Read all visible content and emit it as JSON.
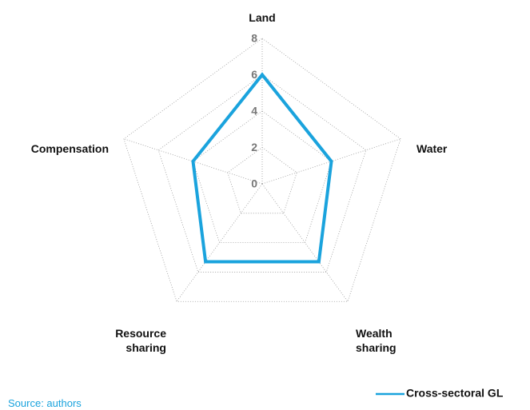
{
  "chart_data": {
    "type": "radar",
    "categories": [
      "Land",
      "Water",
      "Wealth sharing",
      "Resource sharing",
      "Compensation"
    ],
    "series": [
      {
        "name": "Cross-sectoral GL",
        "color": "#1aa3dd",
        "values": [
          6,
          4,
          5.3,
          5.3,
          4
        ]
      }
    ],
    "ylim": [
      0,
      8
    ],
    "yticks": [
      0,
      2,
      4,
      6,
      8
    ],
    "grid": true,
    "legend": "bottom-right",
    "source": "Source: authors"
  }
}
